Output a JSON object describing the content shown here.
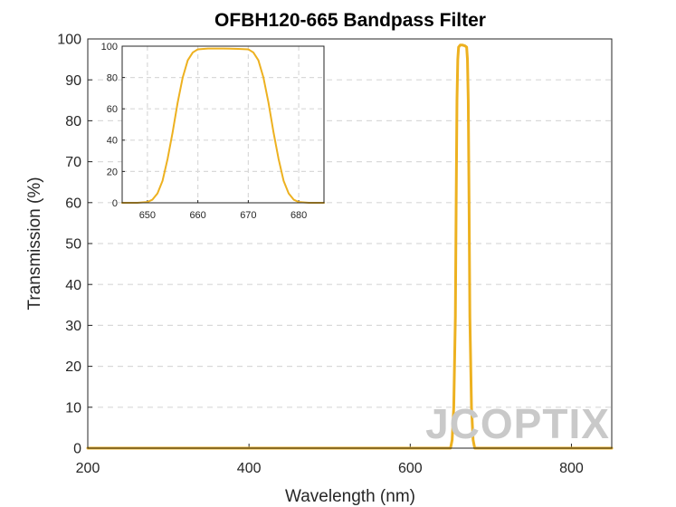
{
  "chart_data": [
    {
      "type": "line",
      "title": "OFBH120-665 Bandpass Filter",
      "xlabel": "Wavelength (nm)",
      "ylabel": "Transmission (%)",
      "xlim": [
        200,
        850
      ],
      "ylim": [
        0,
        100
      ],
      "xticks": [
        200,
        400,
        600,
        800
      ],
      "yticks": [
        0,
        10,
        20,
        30,
        40,
        50,
        60,
        70,
        80,
        90,
        100
      ],
      "grid": "horizontal dashed",
      "series": [
        {
          "color": "#EDB120",
          "x": [
            200,
            645,
            650,
            652,
            654,
            656,
            657,
            658,
            659,
            660,
            662,
            665,
            668,
            670,
            671,
            672,
            673,
            674,
            676,
            678,
            680,
            685,
            850
          ],
          "y": [
            0,
            0,
            0,
            2,
            10,
            32,
            60,
            85,
            95,
            98,
            98.5,
            98.5,
            98.3,
            98,
            95,
            85,
            60,
            32,
            10,
            2,
            0,
            0,
            0
          ]
        }
      ]
    },
    {
      "type": "line",
      "xlim": [
        645,
        685
      ],
      "ylim": [
        0,
        100
      ],
      "xticks": [
        650,
        660,
        670,
        680
      ],
      "yticks": [
        0,
        20,
        40,
        60,
        80,
        100
      ],
      "grid": "both dashed",
      "series": [
        {
          "color": "#EDB120",
          "x": [
            645,
            648,
            650,
            651,
            652,
            653,
            654,
            655,
            656,
            657,
            658,
            659,
            660,
            662,
            665,
            668,
            670,
            671,
            672,
            673,
            674,
            675,
            676,
            677,
            678,
            679,
            680,
            682,
            685
          ],
          "y": [
            0,
            0,
            0.5,
            2,
            6,
            14,
            28,
            45,
            64,
            80,
            91,
            96,
            98,
            98.5,
            98.5,
            98.3,
            98,
            96,
            91,
            80,
            64,
            45,
            28,
            14,
            6,
            2,
            0.5,
            0,
            0
          ]
        }
      ]
    }
  ],
  "watermark": "JCOPTIX",
  "colors": {
    "line": "#EDB120",
    "axis": "#262626",
    "grid": "#d9d9d9"
  }
}
